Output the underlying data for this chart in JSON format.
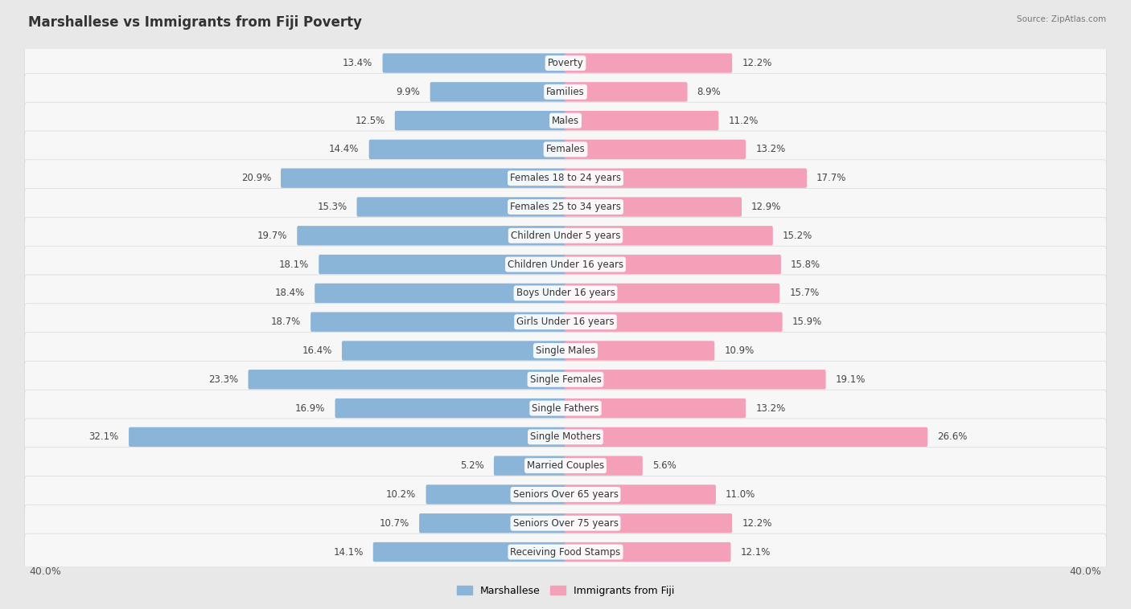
{
  "title": "Marshallese vs Immigrants from Fiji Poverty",
  "source": "Source: ZipAtlas.com",
  "categories": [
    "Poverty",
    "Families",
    "Males",
    "Females",
    "Females 18 to 24 years",
    "Females 25 to 34 years",
    "Children Under 5 years",
    "Children Under 16 years",
    "Boys Under 16 years",
    "Girls Under 16 years",
    "Single Males",
    "Single Females",
    "Single Fathers",
    "Single Mothers",
    "Married Couples",
    "Seniors Over 65 years",
    "Seniors Over 75 years",
    "Receiving Food Stamps"
  ],
  "left_values": [
    13.4,
    9.9,
    12.5,
    14.4,
    20.9,
    15.3,
    19.7,
    18.1,
    18.4,
    18.7,
    16.4,
    23.3,
    16.9,
    32.1,
    5.2,
    10.2,
    10.7,
    14.1
  ],
  "right_values": [
    12.2,
    8.9,
    11.2,
    13.2,
    17.7,
    12.9,
    15.2,
    15.8,
    15.7,
    15.9,
    10.9,
    19.1,
    13.2,
    26.6,
    5.6,
    11.0,
    12.2,
    12.1
  ],
  "left_color": "#8ab4d8",
  "right_color": "#f4a0b8",
  "left_label": "Marshallese",
  "right_label": "Immigrants from Fiji",
  "axis_max": 40.0,
  "page_bg": "#e8e8e8",
  "row_bg": "#f7f7f7",
  "row_edge": "#d8d8d8",
  "title_fontsize": 12,
  "label_fontsize": 8.5,
  "value_fontsize": 8.5
}
